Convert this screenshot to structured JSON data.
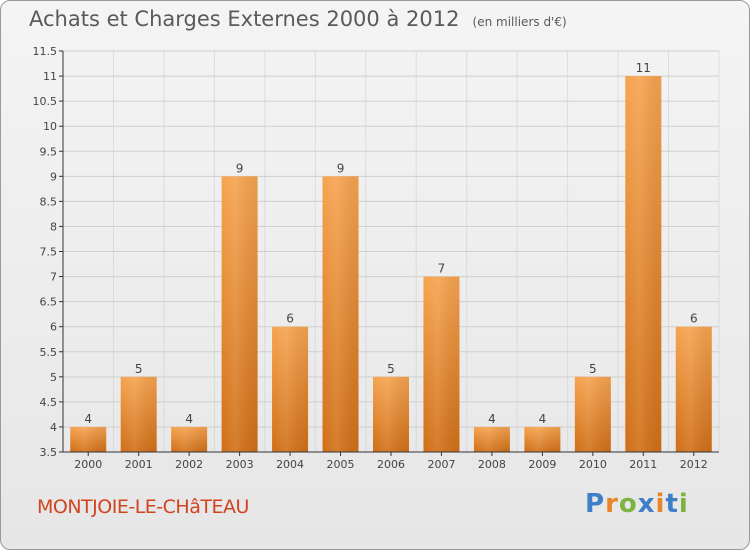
{
  "header": {
    "title": "Achats et Charges Externes 2000 à 2012",
    "subtitle": "(en milliers d'€)"
  },
  "footer": {
    "location": "MONTJOIE-LE-CHâTEAU",
    "brand": "Proxiti"
  },
  "colors": {
    "bar_top": "#f6a34f",
    "bar_bottom": "#d06f17",
    "axis": "#333333",
    "grid": "#cfcfcf",
    "text": "#444444"
  },
  "chart_data": {
    "type": "bar",
    "title": "Achats et Charges Externes 2000 à 2012",
    "subtitle": "(en milliers d'€)",
    "categories": [
      "2000",
      "2001",
      "2002",
      "2003",
      "2004",
      "2005",
      "2006",
      "2007",
      "2008",
      "2009",
      "2010",
      "2011",
      "2012"
    ],
    "values": [
      4,
      5,
      4,
      9,
      6,
      9,
      5,
      7,
      4,
      4,
      5,
      11,
      6
    ],
    "ylim": [
      3.5,
      11.5
    ],
    "yticks": [
      "3.5",
      "4",
      "4.5",
      "5",
      "5.5",
      "6",
      "6.5",
      "7",
      "7.5",
      "8",
      "8.5",
      "9",
      "9.5",
      "10",
      "10.5",
      "11",
      "11.5"
    ],
    "grid": true,
    "legend": "none"
  }
}
